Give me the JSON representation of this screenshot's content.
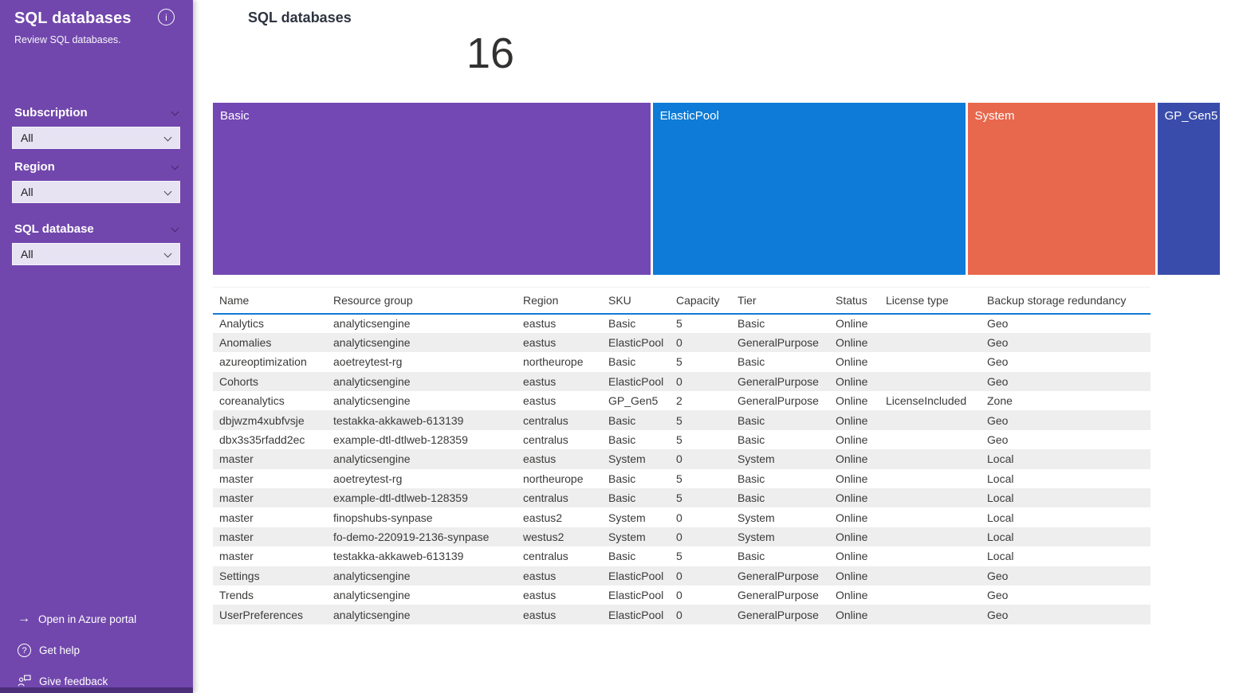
{
  "sidebar": {
    "title": "SQL databases",
    "subtitle": "Review SQL databases.",
    "parameters": [
      {
        "label": "Subscription",
        "value": "All"
      },
      {
        "label": "Region",
        "value": "All"
      },
      {
        "label": "SQL database",
        "value": "All"
      }
    ],
    "links": [
      {
        "label": "Open in Azure portal",
        "icon": "arrow-right-icon"
      },
      {
        "label": "Get help",
        "icon": "help-circle-icon"
      },
      {
        "label": "Give feedback",
        "icon": "feedback-icon"
      }
    ]
  },
  "main": {
    "title": "SQL databases",
    "count": "16"
  },
  "chart_data": {
    "type": "treemap",
    "title": "",
    "categories": [
      "Basic",
      "ElasticPool",
      "System",
      "GP_Gen5"
    ],
    "values": [
      7,
      5,
      3,
      1
    ],
    "slices": [
      {
        "label": "Basic",
        "value": 7,
        "color": "#7347b4"
      },
      {
        "label": "ElasticPool",
        "value": 5,
        "color": "#0d7bd7"
      },
      {
        "label": "System",
        "value": 3,
        "color": "#e8684d"
      },
      {
        "label": "GP_Gen5",
        "value": 1,
        "color": "#3a4cab"
      }
    ],
    "legend": "none"
  },
  "table": {
    "columns": [
      "Name",
      "Resource group",
      "Region",
      "SKU",
      "Capacity",
      "Tier",
      "Status",
      "License type",
      "Backup storage redundancy"
    ],
    "rows": [
      [
        "Analytics",
        "analyticsengine",
        "eastus",
        "Basic",
        "5",
        "Basic",
        "Online",
        "",
        "Geo"
      ],
      [
        "Anomalies",
        "analyticsengine",
        "eastus",
        "ElasticPool",
        "0",
        "GeneralPurpose",
        "Online",
        "",
        "Geo"
      ],
      [
        "azureoptimization",
        "aoetreytest-rg",
        "northeurope",
        "Basic",
        "5",
        "Basic",
        "Online",
        "",
        "Geo"
      ],
      [
        "Cohorts",
        "analyticsengine",
        "eastus",
        "ElasticPool",
        "0",
        "GeneralPurpose",
        "Online",
        "",
        "Geo"
      ],
      [
        "coreanalytics",
        "analyticsengine",
        "eastus",
        "GP_Gen5",
        "2",
        "GeneralPurpose",
        "Online",
        "LicenseIncluded",
        "Zone"
      ],
      [
        "dbjwzm4xubfvsje",
        "testakka-akkaweb-613139",
        "centralus",
        "Basic",
        "5",
        "Basic",
        "Online",
        "",
        "Geo"
      ],
      [
        "dbx3s35rfadd2ec",
        "example-dtl-dtlweb-128359",
        "centralus",
        "Basic",
        "5",
        "Basic",
        "Online",
        "",
        "Geo"
      ],
      [
        "master",
        "analyticsengine",
        "eastus",
        "System",
        "0",
        "System",
        "Online",
        "",
        "Local"
      ],
      [
        "master",
        "aoetreytest-rg",
        "northeurope",
        "Basic",
        "5",
        "Basic",
        "Online",
        "",
        "Local"
      ],
      [
        "master",
        "example-dtl-dtlweb-128359",
        "centralus",
        "Basic",
        "5",
        "Basic",
        "Online",
        "",
        "Local"
      ],
      [
        "master",
        "finopshubs-synpase",
        "eastus2",
        "System",
        "0",
        "System",
        "Online",
        "",
        "Local"
      ],
      [
        "master",
        "fo-demo-220919-2136-synpase",
        "westus2",
        "System",
        "0",
        "System",
        "Online",
        "",
        "Local"
      ],
      [
        "master",
        "testakka-akkaweb-613139",
        "centralus",
        "Basic",
        "5",
        "Basic",
        "Online",
        "",
        "Local"
      ],
      [
        "Settings",
        "analyticsengine",
        "eastus",
        "ElasticPool",
        "0",
        "GeneralPurpose",
        "Online",
        "",
        "Geo"
      ],
      [
        "Trends",
        "analyticsengine",
        "eastus",
        "ElasticPool",
        "0",
        "GeneralPurpose",
        "Online",
        "",
        "Geo"
      ],
      [
        "UserPreferences",
        "analyticsengine",
        "eastus",
        "ElasticPool",
        "0",
        "GeneralPurpose",
        "Online",
        "",
        "Geo"
      ]
    ]
  },
  "colors": {
    "sidebar_bg": "#7147ad",
    "dropdown_bg": "#e7e3f3",
    "header_underline": "#1379d5",
    "row_alt_bg": "#eeeeee",
    "text_dark": "#3b3a39"
  }
}
